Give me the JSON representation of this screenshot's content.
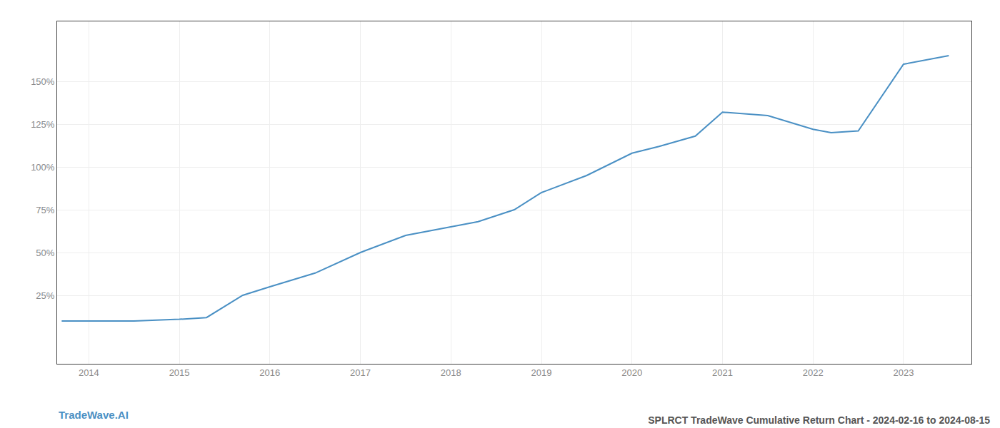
{
  "chart_data": {
    "type": "line",
    "title": "SPLRCT TradeWave Cumulative Return Chart - 2024-02-16 to 2024-08-15",
    "annotations": [
      "TradeWave.AI"
    ],
    "x": [
      2013.7,
      2014.0,
      2014.5,
      2015.0,
      2015.3,
      2015.7,
      2016.0,
      2016.5,
      2017.0,
      2017.5,
      2018.0,
      2018.3,
      2018.7,
      2019.0,
      2019.5,
      2020.0,
      2020.3,
      2020.7,
      2021.0,
      2021.5,
      2022.0,
      2022.2,
      2022.5,
      2023.0,
      2023.5
    ],
    "values": [
      10,
      10,
      10,
      11,
      12,
      25,
      30,
      38,
      50,
      60,
      65,
      68,
      75,
      85,
      95,
      108,
      112,
      118,
      132,
      130,
      122,
      120,
      121,
      160,
      165
    ],
    "color": "#4a90c4",
    "xlim": [
      2013.65,
      2023.75
    ],
    "xticks": [
      2014,
      2015,
      2016,
      2017,
      2018,
      2019,
      2020,
      2021,
      2022,
      2023
    ],
    "ylim": [
      -15,
      185
    ],
    "yticks": [
      {
        "value": 25,
        "label": "25%"
      },
      {
        "value": 50,
        "label": "50%"
      },
      {
        "value": 75,
        "label": "75%"
      },
      {
        "value": 100,
        "label": "100%"
      },
      {
        "value": 125,
        "label": "125%"
      },
      {
        "value": 150,
        "label": "150%"
      }
    ],
    "grid": true
  }
}
